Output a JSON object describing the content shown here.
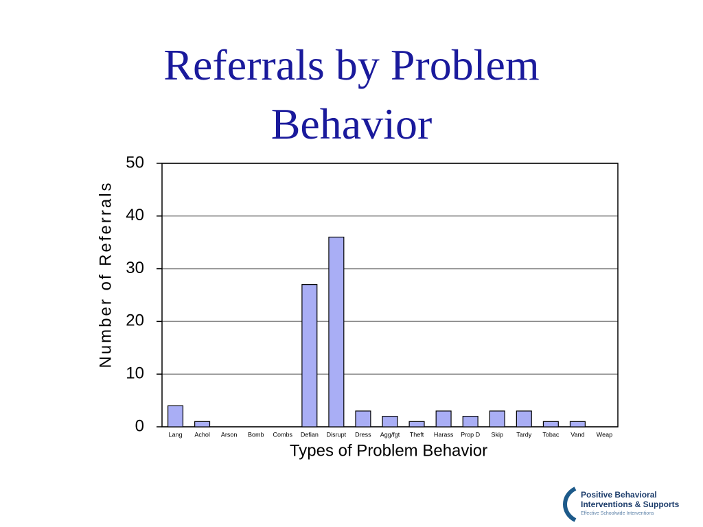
{
  "chart_data": {
    "type": "bar",
    "title": "Referrals by Problem Behavior",
    "x_label": "Types of Problem Behavior",
    "y_label": "Number of Referrals",
    "categories": [
      "Lang",
      "Achol",
      "Arson",
      "Bomb",
      "Combs",
      "Defian",
      "Disrupt",
      "Dress",
      "Agg/fgt",
      "Theft",
      "Harass",
      "Prop D",
      "Skip",
      "Tardy",
      "Tobac",
      "Vand",
      "Weap"
    ],
    "values": [
      4,
      1,
      0,
      0,
      0,
      27,
      36,
      3,
      2,
      1,
      3,
      2,
      3,
      3,
      1,
      1,
      0
    ],
    "color": "#a9aef5",
    "ylim": [
      0,
      50
    ],
    "yticks": [
      0,
      10,
      20,
      30,
      40,
      50
    ],
    "grid": true
  },
  "logo": {
    "line1": "Positive Behavioral",
    "line2": "Interventions & Supports",
    "tagline": "Effective Schoolwide Interventions"
  }
}
